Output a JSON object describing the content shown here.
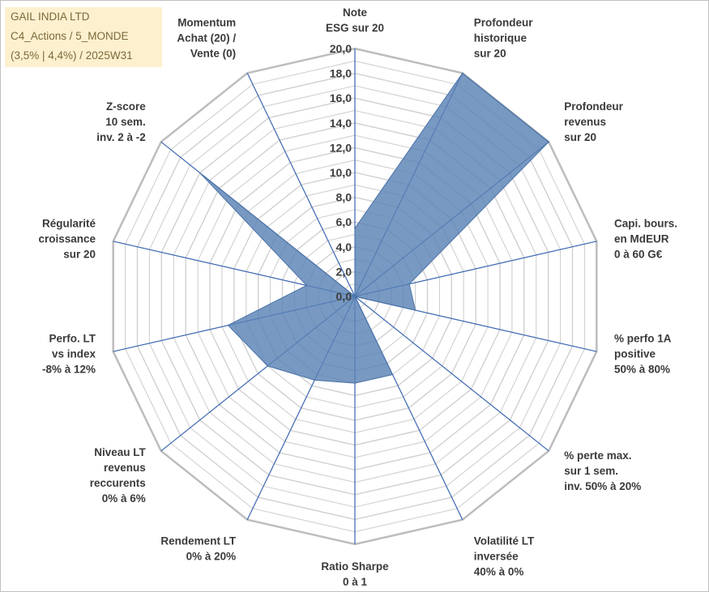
{
  "title_box": {
    "line1": "GAIL INDIA LTD",
    "line2": "C4_Actions / 5_MONDE",
    "line3": "(3,5% | 4,4%) / 2025W31"
  },
  "chart_data": {
    "type": "radar",
    "title": "GAIL INDIA LTD",
    "categories": [
      [
        "Note",
        "ESG sur 20"
      ],
      [
        "Profondeur",
        "historique",
        "sur 20"
      ],
      [
        "Profondeur",
        "revenus",
        "sur 20"
      ],
      [
        "Capi. bours.",
        "en MdEUR",
        "0 à 60 G€"
      ],
      [
        "% perfo 1A",
        "positive",
        "50% à 80%"
      ],
      [
        "% perte max.",
        "sur 1 sem.",
        "inv. 50% à 20%"
      ],
      [
        "Volatilité LT",
        "inversée",
        "40% à 0%"
      ],
      [
        "Ratio Sharpe",
        "0 à 1"
      ],
      [
        "Rendement LT",
        "0% à 20%"
      ],
      [
        "Niveau LT",
        "revenus",
        "reccurents",
        "0% à 6%"
      ],
      [
        "Perfo. LT",
        "vs index",
        "-8% à 12%"
      ],
      [
        "Régularité",
        "croissance",
        "sur 20"
      ],
      [
        "Z-score",
        "10 sem.",
        "inv. 2 à -2"
      ],
      [
        "Momentum",
        "Achat (20) /",
        "Vente (0)"
      ]
    ],
    "series": [
      {
        "values": [
          5.5,
          20.0,
          20.0,
          4.5,
          5.0,
          0.0,
          7.0,
          7.0,
          7.5,
          9.0,
          10.5,
          4.0,
          16.0,
          0.0
        ]
      }
    ],
    "ylim": [
      0,
      20
    ],
    "ticks": [
      "0,0",
      "2,0",
      "4,0",
      "6,0",
      "8,0",
      "10,0",
      "12,0",
      "14,0",
      "16,0",
      "18,0",
      "20,0"
    ],
    "grid": true,
    "colors": {
      "fill": "#5a82b4",
      "stroke": "#4a72a8",
      "spoke": "#3a66b0",
      "grid": "#d0d0d0",
      "outer": "#bdbdbd"
    }
  }
}
